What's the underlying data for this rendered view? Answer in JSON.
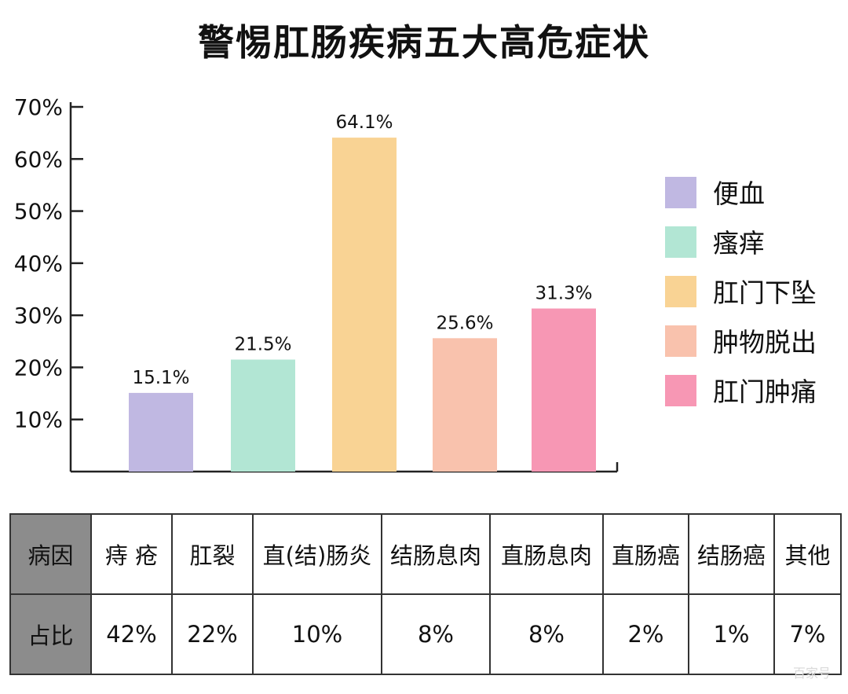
{
  "title": "警惕肛肠疾病五大高危症状",
  "chart_data": {
    "type": "bar",
    "title": "警惕肛肠疾病五大高危症状",
    "xlabel": "",
    "ylabel": "",
    "ylim": [
      0,
      70
    ],
    "yticks": [
      "10%",
      "20%",
      "30%",
      "40%",
      "50%",
      "60%",
      "70%"
    ],
    "ytick_values": [
      10,
      20,
      30,
      40,
      50,
      60,
      70
    ],
    "grid": false,
    "legend_position": "right",
    "categories": [
      "便血",
      "瘙痒",
      "肛门下坠",
      "肿物脱出",
      "肛门肿痛"
    ],
    "values": [
      15.1,
      21.5,
      64.1,
      25.6,
      31.3
    ],
    "value_labels": [
      "15.1%",
      "21.5%",
      "64.1%",
      "25.6%",
      "31.3%"
    ],
    "colors": [
      "#c0b8e2",
      "#b2e6d4",
      "#f9d394",
      "#f9c2ad",
      "#f797b4"
    ]
  },
  "table": {
    "row_headers": [
      "病因",
      "占比"
    ],
    "causes": [
      "痔 疮",
      "肛裂",
      "直(结)肠炎",
      "结肠息肉",
      "直肠息肉",
      "直肠癌",
      "结肠癌",
      "其他"
    ],
    "shares": [
      "42%",
      "22%",
      "10%",
      "8%",
      "8%",
      "2%",
      "1%",
      "7%"
    ]
  },
  "watermark": "百家号"
}
